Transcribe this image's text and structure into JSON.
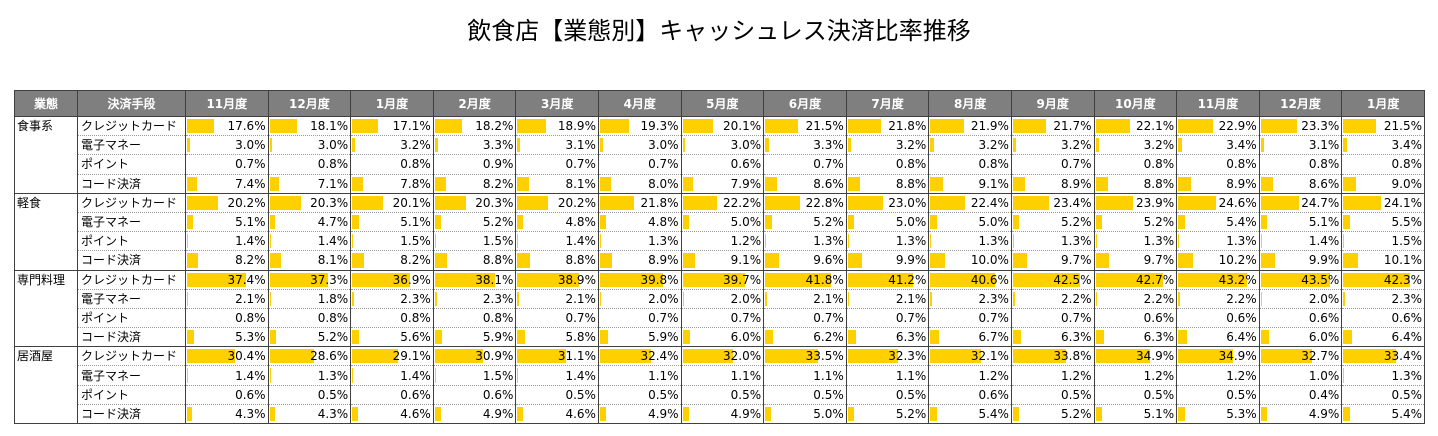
{
  "chart_data": {
    "type": "table",
    "title": "飲食店【業態別】キャッシュレス決済比率推移",
    "headers": [
      "業態",
      "決済手段",
      "11月度",
      "12月度",
      "1月度",
      "2月度",
      "3月度",
      "4月度",
      "5月度",
      "6月度",
      "7月度",
      "8月度",
      "9月度",
      "10月度",
      "11月度",
      "12月度",
      "1月度"
    ],
    "bar_max": 50,
    "bar_color": "#ffd000",
    "groups": [
      {
        "category": "食事系",
        "rows": [
          {
            "method": "クレジットカード",
            "values": [
              "17.6%",
              "18.1%",
              "17.1%",
              "18.2%",
              "18.9%",
              "19.3%",
              "20.1%",
              "21.5%",
              "21.8%",
              "21.9%",
              "21.7%",
              "22.1%",
              "22.9%",
              "23.3%",
              "21.5%"
            ]
          },
          {
            "method": "電子マネー",
            "values": [
              "3.0%",
              "3.0%",
              "3.2%",
              "3.3%",
              "3.1%",
              "3.0%",
              "3.0%",
              "3.3%",
              "3.2%",
              "3.2%",
              "3.2%",
              "3.2%",
              "3.4%",
              "3.1%",
              "3.4%"
            ]
          },
          {
            "method": "ポイント",
            "values": [
              "0.7%",
              "0.8%",
              "0.8%",
              "0.9%",
              "0.7%",
              "0.7%",
              "0.6%",
              "0.7%",
              "0.8%",
              "0.8%",
              "0.7%",
              "0.8%",
              "0.8%",
              "0.8%",
              "0.8%"
            ]
          },
          {
            "method": "コード決済",
            "values": [
              "7.4%",
              "7.1%",
              "7.8%",
              "8.2%",
              "8.1%",
              "8.0%",
              "7.9%",
              "8.6%",
              "8.8%",
              "9.1%",
              "8.9%",
              "8.8%",
              "8.9%",
              "8.6%",
              "9.0%"
            ]
          }
        ]
      },
      {
        "category": "軽食",
        "rows": [
          {
            "method": "クレジットカード",
            "values": [
              "20.2%",
              "20.3%",
              "20.1%",
              "20.3%",
              "20.2%",
              "21.8%",
              "22.2%",
              "22.8%",
              "23.0%",
              "22.4%",
              "23.4%",
              "23.9%",
              "24.6%",
              "24.7%",
              "24.1%"
            ]
          },
          {
            "method": "電子マネー",
            "values": [
              "5.1%",
              "4.7%",
              "5.1%",
              "5.2%",
              "4.8%",
              "4.8%",
              "5.0%",
              "5.2%",
              "5.0%",
              "5.0%",
              "5.2%",
              "5.2%",
              "5.4%",
              "5.1%",
              "5.5%"
            ]
          },
          {
            "method": "ポイント",
            "values": [
              "1.4%",
              "1.4%",
              "1.5%",
              "1.5%",
              "1.4%",
              "1.3%",
              "1.2%",
              "1.3%",
              "1.3%",
              "1.3%",
              "1.3%",
              "1.3%",
              "1.3%",
              "1.4%",
              "1.5%"
            ]
          },
          {
            "method": "コード決済",
            "values": [
              "8.2%",
              "8.1%",
              "8.2%",
              "8.8%",
              "8.8%",
              "8.9%",
              "9.1%",
              "9.6%",
              "9.9%",
              "10.0%",
              "9.7%",
              "9.7%",
              "10.2%",
              "9.9%",
              "10.1%"
            ]
          }
        ]
      },
      {
        "category": "専門料理",
        "rows": [
          {
            "method": "クレジットカード",
            "values": [
              "37.4%",
              "37.3%",
              "36.9%",
              "38.1%",
              "38.9%",
              "39.8%",
              "39.7%",
              "41.8%",
              "41.2%",
              "40.6%",
              "42.5%",
              "42.7%",
              "43.2%",
              "43.5%",
              "42.3%"
            ]
          },
          {
            "method": "電子マネー",
            "values": [
              "2.1%",
              "1.8%",
              "2.3%",
              "2.3%",
              "2.1%",
              "2.0%",
              "2.0%",
              "2.1%",
              "2.1%",
              "2.3%",
              "2.2%",
              "2.2%",
              "2.2%",
              "2.0%",
              "2.3%"
            ]
          },
          {
            "method": "ポイント",
            "values": [
              "0.8%",
              "0.8%",
              "0.8%",
              "0.8%",
              "0.7%",
              "0.7%",
              "0.7%",
              "0.7%",
              "0.7%",
              "0.7%",
              "0.7%",
              "0.6%",
              "0.6%",
              "0.6%",
              "0.6%"
            ]
          },
          {
            "method": "コード決済",
            "values": [
              "5.3%",
              "5.2%",
              "5.6%",
              "5.9%",
              "5.8%",
              "5.9%",
              "6.0%",
              "6.2%",
              "6.3%",
              "6.7%",
              "6.3%",
              "6.3%",
              "6.4%",
              "6.0%",
              "6.4%"
            ]
          }
        ]
      },
      {
        "category": "居酒屋",
        "rows": [
          {
            "method": "クレジットカード",
            "values": [
              "30.4%",
              "28.6%",
              "29.1%",
              "30.9%",
              "31.1%",
              "32.4%",
              "32.0%",
              "33.5%",
              "32.3%",
              "32.1%",
              "33.8%",
              "34.9%",
              "34.9%",
              "32.7%",
              "33.4%"
            ]
          },
          {
            "method": "電子マネー",
            "values": [
              "1.4%",
              "1.3%",
              "1.4%",
              "1.5%",
              "1.4%",
              "1.1%",
              "1.1%",
              "1.1%",
              "1.1%",
              "1.2%",
              "1.2%",
              "1.2%",
              "1.2%",
              "1.0%",
              "1.3%"
            ]
          },
          {
            "method": "ポイント",
            "values": [
              "0.6%",
              "0.5%",
              "0.6%",
              "0.6%",
              "0.5%",
              "0.5%",
              "0.5%",
              "0.5%",
              "0.5%",
              "0.6%",
              "0.5%",
              "0.5%",
              "0.5%",
              "0.4%",
              "0.5%"
            ]
          },
          {
            "method": "コード決済",
            "values": [
              "4.3%",
              "4.3%",
              "4.6%",
              "4.9%",
              "4.6%",
              "4.9%",
              "4.9%",
              "5.0%",
              "5.2%",
              "5.4%",
              "5.2%",
              "5.1%",
              "5.3%",
              "4.9%",
              "5.4%"
            ]
          }
        ]
      }
    ]
  }
}
